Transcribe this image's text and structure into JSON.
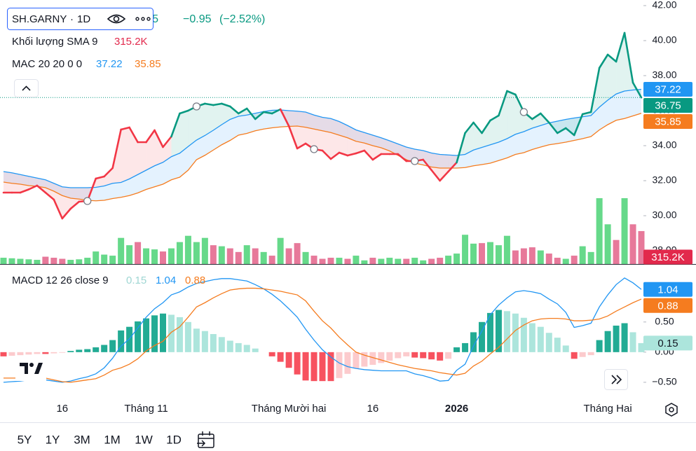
{
  "header": {
    "symbol": "SH.GARNY",
    "interval": "1D",
    "change": "−0.95",
    "change_pct": "(−2.52%)"
  },
  "toolbar": {
    "ranges": [
      "5Y",
      "1Y",
      "3M",
      "1M",
      "1W",
      "1D"
    ]
  },
  "chart_data": [
    {
      "type": "line",
      "legend_volume": "Khối lượng SMA 9",
      "legend_ma": "MAC 20 20 0 0",
      "ylim": [
        27.24,
        42.32
      ],
      "yticks": [
        {
          "value": 28,
          "label": "28.00"
        },
        {
          "value": 30,
          "label": "30.00"
        },
        {
          "value": 32,
          "label": "32.00"
        },
        {
          "value": 34,
          "label": "34.00"
        },
        {
          "value": 36,
          "label": "36.00"
        },
        {
          "value": 38,
          "label": "38.00"
        },
        {
          "value": 40,
          "label": "40.00"
        },
        {
          "value": 42,
          "label": "42.00"
        }
      ],
      "series": [
        {
          "values": [
            31.32,
            31.32,
            31.32,
            31.5,
            31.72,
            31.32,
            30.92,
            29.84,
            30.4,
            30.8,
            30.84,
            32.12,
            32.24,
            32.72,
            34.92,
            35.04,
            34.2,
            34.2,
            34.88,
            33.92,
            34.52,
            35.84,
            36.0,
            36.24,
            36.4,
            36.32,
            36.4,
            36.24,
            35.84,
            36.12,
            35.52,
            35.92,
            35.84,
            36.08,
            35.12,
            33.84,
            34.12,
            33.8,
            33.72,
            33.24,
            33.6,
            33.44,
            33.56,
            33.72,
            33.2,
            33.52,
            33.52,
            33.52,
            33.12,
            33.12,
            33.2,
            32.6,
            32.0,
            32.52,
            33.04,
            34.72,
            35.32,
            34.72,
            35.44,
            35.72,
            37.12,
            36.92,
            35.92,
            35.52,
            35.84,
            35.32,
            34.72,
            35.0,
            34.6,
            35.8,
            35.92,
            38.44,
            39.2,
            38.8,
            40.44,
            37.6,
            36.75
          ],
          "colors": [
            "#f23645",
            "#f23645",
            "#f23645",
            "#f23645",
            "#f23645",
            "#f23645",
            "#f23645",
            "#f23645",
            "#f23645",
            "#f23645",
            "#f23645",
            "#f23645",
            "#f23645",
            "#f23645",
            "#f23645",
            "#f23645",
            "#f23645",
            "#f23645",
            "#f23645",
            "#f23645",
            "#f23645",
            "#089981",
            "#089981",
            "#089981",
            "#089981",
            "#089981",
            "#089981",
            "#089981",
            "#089981",
            "#089981",
            "#089981",
            "#089981",
            "#089981",
            "#089981",
            "#f23645",
            "#f23645",
            "#f23645",
            "#f23645",
            "#f23645",
            "#f23645",
            "#f23645",
            "#f23645",
            "#f23645",
            "#f23645",
            "#f23645",
            "#f23645",
            "#f23645",
            "#f23645",
            "#f23645",
            "#f23645",
            "#f23645",
            "#f23645",
            "#f23645",
            "#f23645",
            "#f23645",
            "#089981",
            "#089981",
            "#089981",
            "#089981",
            "#089981",
            "#089981",
            "#089981",
            "#089981",
            "#089981",
            "#089981",
            "#089981",
            "#089981",
            "#089981",
            "#089981",
            "#089981",
            "#089981",
            "#089981",
            "#089981",
            "#089981",
            "#089981",
            "#089981",
            "#089981"
          ]
        },
        {
          "color": "#2196f3",
          "values": [
            32.52,
            32.45,
            32.35,
            32.25,
            32.15,
            32.05,
            31.85,
            31.65,
            31.6,
            31.6,
            31.6,
            31.62,
            31.7,
            31.85,
            31.9,
            32.1,
            32.35,
            32.6,
            32.85,
            33.05,
            33.37,
            33.57,
            33.95,
            34.32,
            34.58,
            34.88,
            35.2,
            35.5,
            35.68,
            35.75,
            35.85,
            35.95,
            36.02,
            36.04,
            36.0,
            35.97,
            35.92,
            35.75,
            35.62,
            35.55,
            35.38,
            35.15,
            34.9,
            34.75,
            34.6,
            34.45,
            34.28,
            34.1,
            33.92,
            33.8,
            33.72,
            33.58,
            33.5,
            33.47,
            33.44,
            33.5,
            33.75,
            33.9,
            34.05,
            34.2,
            34.4,
            34.65,
            34.8,
            35.0,
            35.15,
            35.3,
            35.4,
            35.5,
            35.58,
            35.65,
            35.72,
            36.2,
            36.6,
            36.95,
            37.12,
            37.18,
            37.22
          ]
        },
        {
          "color": "#f57c1f",
          "values": [
            31.92,
            31.85,
            31.8,
            31.72,
            31.68,
            31.6,
            31.4,
            31.15,
            31.0,
            30.95,
            30.88,
            30.85,
            30.88,
            30.98,
            31.05,
            31.15,
            31.3,
            31.5,
            31.65,
            31.8,
            32.05,
            32.2,
            32.6,
            33.2,
            33.45,
            33.75,
            34.05,
            34.3,
            34.6,
            34.7,
            34.85,
            34.95,
            35.02,
            35.07,
            35.1,
            35.12,
            35.05,
            34.95,
            34.85,
            34.75,
            34.6,
            34.45,
            34.25,
            34.15,
            34.0,
            33.88,
            33.7,
            33.45,
            33.2,
            33.0,
            32.9,
            32.78,
            32.72,
            32.72,
            32.72,
            32.75,
            32.85,
            32.92,
            33.0,
            33.15,
            33.3,
            33.5,
            33.6,
            33.78,
            33.92,
            34.05,
            34.12,
            34.2,
            34.3,
            34.4,
            34.52,
            34.9,
            35.2,
            35.45,
            35.55,
            35.7,
            35.85
          ]
        }
      ],
      "band_color": "#2196f3",
      "cross_markers": [
        10,
        23,
        37,
        49,
        62
      ],
      "volume": {
        "up_color": "#66d98a",
        "down_color": "#e7799a",
        "ylim": [
          0,
          1340
        ],
        "last_label": "315.2K",
        "values": [
          60,
          55,
          50,
          45,
          40,
          70,
          60,
          50,
          40,
          45,
          60,
          120,
          90,
          80,
          250,
          180,
          210,
          150,
          140,
          120,
          150,
          210,
          270,
          210,
          250,
          180,
          170,
          150,
          115,
          180,
          150,
          115,
          80,
          250,
          150,
          200,
          115,
          80,
          50,
          60,
          60,
          50,
          80,
          35,
          60,
          50,
          60,
          50,
          50,
          60,
          35,
          50,
          60,
          80,
          100,
          280,
          195,
          200,
          210,
          180,
          270,
          130,
          150,
          160,
          130,
          100,
          60,
          50,
          80,
          170,
          115,
          630,
          380,
          230,
          630,
          380,
          315.2
        ]
      }
    },
    {
      "type": "macd",
      "legend": "MACD 12 26 close 9",
      "categories": [
        null,
        null,
        null,
        null,
        null,
        null,
        null,
        "16",
        null,
        null,
        null,
        null,
        null,
        null,
        null,
        null,
        null,
        "Tháng 11",
        null,
        null,
        null,
        null,
        null,
        null,
        null,
        null,
        null,
        null,
        null,
        null,
        null,
        null,
        null,
        null,
        "Tháng Mười hai",
        null,
        null,
        null,
        null,
        null,
        null,
        null,
        null,
        null,
        "16",
        null,
        null,
        null,
        null,
        null,
        null,
        null,
        null,
        null,
        "2026",
        null,
        null,
        null,
        null,
        null,
        null,
        null,
        null,
        null,
        null,
        null,
        null,
        null,
        null,
        null,
        null,
        null,
        "Tháng Hai",
        null,
        null,
        null,
        null
      ],
      "ylim": [
        -0.78,
        1.45
      ],
      "yticks": [
        {
          "value": -0.5,
          "label": "−0.50"
        },
        {
          "value": 0,
          "label": "0.00"
        },
        {
          "value": 0.5,
          "label": "0.50"
        }
      ],
      "histogram": {
        "colors": {
          "pos_rising": "#22ab94",
          "pos_falling": "#ace5dc",
          "neg_falling": "#f7525f",
          "neg_rising": "#fccbcd"
        },
        "values": [
          -0.07,
          -0.06,
          -0.05,
          -0.04,
          -0.03,
          -0.03,
          -0.02,
          -0.01,
          0.02,
          0.04,
          0.05,
          0.08,
          0.12,
          0.2,
          0.36,
          0.42,
          0.51,
          0.56,
          0.61,
          0.64,
          0.62,
          0.58,
          0.5,
          0.39,
          0.35,
          0.3,
          0.25,
          0.19,
          0.15,
          0.12,
          0.06,
          0.0,
          -0.07,
          -0.16,
          -0.26,
          -0.37,
          -0.47,
          -0.48,
          -0.48,
          -0.48,
          -0.43,
          -0.36,
          -0.27,
          -0.24,
          -0.21,
          -0.18,
          -0.14,
          -0.1,
          -0.07,
          -0.09,
          -0.1,
          -0.12,
          -0.14,
          -0.11,
          0.08,
          0.15,
          0.33,
          0.5,
          0.65,
          0.7,
          0.68,
          0.64,
          0.57,
          0.48,
          0.42,
          0.32,
          0.24,
          0.11,
          -0.11,
          -0.08,
          -0.05,
          0.2,
          0.35,
          0.44,
          0.48,
          0.33,
          0.15
        ]
      },
      "series": [
        {
          "color": "#2196f3",
          "values": [
            -0.5,
            -0.49,
            -0.48,
            -0.46,
            -0.45,
            -0.46,
            -0.48,
            -0.5,
            -0.48,
            -0.44,
            -0.41,
            -0.36,
            -0.26,
            -0.1,
            0.1,
            0.22,
            0.4,
            0.58,
            0.72,
            0.82,
            0.95,
            1.0,
            1.08,
            1.14,
            1.17,
            1.2,
            1.22,
            1.22,
            1.2,
            1.18,
            1.12,
            1.05,
            0.96,
            0.85,
            0.72,
            0.58,
            0.38,
            0.2,
            0.04,
            -0.08,
            -0.18,
            -0.24,
            -0.27,
            -0.29,
            -0.3,
            -0.31,
            -0.31,
            -0.31,
            -0.31,
            -0.36,
            -0.39,
            -0.43,
            -0.48,
            -0.47,
            -0.3,
            -0.2,
            0.1,
            0.35,
            0.62,
            0.78,
            0.9,
            1.0,
            1.02,
            1.0,
            0.97,
            0.88,
            0.8,
            0.66,
            0.41,
            0.44,
            0.48,
            0.75,
            0.95,
            1.12,
            1.23,
            1.15,
            1.04
          ]
        },
        {
          "color": "#f57c1f",
          "values": [
            -0.43,
            -0.43,
            -0.43,
            -0.43,
            -0.42,
            -0.43,
            -0.46,
            -0.49,
            -0.5,
            -0.48,
            -0.46,
            -0.44,
            -0.38,
            -0.3,
            -0.26,
            -0.2,
            -0.11,
            0.02,
            0.11,
            0.18,
            0.33,
            0.42,
            0.58,
            0.75,
            0.82,
            0.9,
            0.97,
            1.03,
            1.05,
            1.06,
            1.06,
            1.05,
            1.03,
            1.01,
            0.98,
            0.95,
            0.85,
            0.68,
            0.52,
            0.4,
            0.25,
            0.12,
            0.0,
            -0.05,
            -0.09,
            -0.13,
            -0.17,
            -0.21,
            -0.24,
            -0.27,
            -0.29,
            -0.31,
            -0.34,
            -0.36,
            -0.38,
            -0.35,
            -0.23,
            -0.15,
            -0.03,
            0.08,
            0.22,
            0.36,
            0.45,
            0.52,
            0.55,
            0.56,
            0.56,
            0.55,
            0.52,
            0.52,
            0.53,
            0.55,
            0.6,
            0.68,
            0.75,
            0.82,
            0.88
          ]
        }
      ]
    }
  ]
}
